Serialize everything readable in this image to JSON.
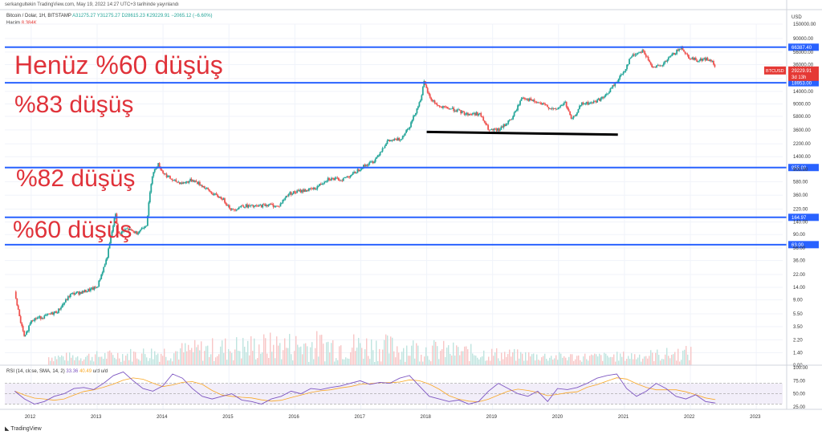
{
  "header": {
    "published": "serkangultekin TradingView.com, May 19, 2022 14:27 UTC+3 tarihinde yayınlandı",
    "symbol": "Bitcoin / Dolar, 1H, BITSTAMP",
    "open": "A31275.27",
    "high": "Y31275.27",
    "low": "D28615.23",
    "close": "K29229.91",
    "change": "−2065.12 (−6.60%)",
    "volume_label": "Hacim",
    "volume_value": "8.384K",
    "currency": "USD",
    "brand": "TradingView"
  },
  "chart_data": {
    "type": "line",
    "title": "",
    "scale": "log",
    "xlabel": "",
    "ylabel": "USD",
    "x_ticks": [
      "2012",
      "2013",
      "2014",
      "2015",
      "2016",
      "2017",
      "2018",
      "2019",
      "2020",
      "2021",
      "2022",
      "2023"
    ],
    "y_ticks": [
      "150000.00",
      "90000.00",
      "56000.00",
      "36000.00",
      "22000.00",
      "14000.00",
      "9000.00",
      "5800.00",
      "3600.00",
      "2200.00",
      "1400.00",
      "900.00",
      "580.00",
      "360.00",
      "220.00",
      "140.00",
      "90.00",
      "56.00",
      "36.00",
      "22.00",
      "14.00",
      "9.00",
      "5.50",
      "3.50",
      "2.20",
      "1.40",
      "0.90"
    ],
    "ylim": [
      0.9,
      150000
    ],
    "xlim": [
      2011.6,
      2023.4
    ],
    "grid": true,
    "series": [
      {
        "name": "",
        "points": [
          [
            2011.75,
            12
          ],
          [
            2011.82,
            5
          ],
          [
            2011.9,
            2.3
          ],
          [
            2012.0,
            4.5
          ],
          [
            2012.2,
            5
          ],
          [
            2012.4,
            6
          ],
          [
            2012.6,
            11
          ],
          [
            2012.8,
            12
          ],
          [
            2013.0,
            14
          ],
          [
            2013.15,
            40
          ],
          [
            2013.28,
            190
          ],
          [
            2013.32,
            90
          ],
          [
            2013.45,
            110
          ],
          [
            2013.6,
            95
          ],
          [
            2013.75,
            130
          ],
          [
            2013.83,
            700
          ],
          [
            2013.92,
            1100
          ],
          [
            2014.0,
            800
          ],
          [
            2014.15,
            600
          ],
          [
            2014.3,
            550
          ],
          [
            2014.45,
            620
          ],
          [
            2014.6,
            500
          ],
          [
            2014.75,
            380
          ],
          [
            2014.9,
            320
          ],
          [
            2015.05,
            210
          ],
          [
            2015.2,
            250
          ],
          [
            2015.4,
            240
          ],
          [
            2015.6,
            260
          ],
          [
            2015.75,
            240
          ],
          [
            2015.9,
            380
          ],
          [
            2016.1,
            420
          ],
          [
            2016.3,
            450
          ],
          [
            2016.5,
            650
          ],
          [
            2016.7,
            620
          ],
          [
            2016.9,
            780
          ],
          [
            2017.0,
            950
          ],
          [
            2017.2,
            1200
          ],
          [
            2017.4,
            2400
          ],
          [
            2017.6,
            2600
          ],
          [
            2017.75,
            4300
          ],
          [
            2017.9,
            10000
          ],
          [
            2017.96,
            19000
          ],
          [
            2018.05,
            11000
          ],
          [
            2018.2,
            8000
          ],
          [
            2018.4,
            7500
          ],
          [
            2018.6,
            6300
          ],
          [
            2018.8,
            6400
          ],
          [
            2018.95,
            3500
          ],
          [
            2019.1,
            3600
          ],
          [
            2019.3,
            5500
          ],
          [
            2019.45,
            11500
          ],
          [
            2019.6,
            10000
          ],
          [
            2019.8,
            8500
          ],
          [
            2019.95,
            7200
          ],
          [
            2020.1,
            9500
          ],
          [
            2020.2,
            5000
          ],
          [
            2020.35,
            9000
          ],
          [
            2020.5,
            9300
          ],
          [
            2020.7,
            11500
          ],
          [
            2020.85,
            18000
          ],
          [
            2021.0,
            29000
          ],
          [
            2021.1,
            48000
          ],
          [
            2021.28,
            60000
          ],
          [
            2021.4,
            35000
          ],
          [
            2021.55,
            33000
          ],
          [
            2021.7,
            48000
          ],
          [
            2021.87,
            66000
          ],
          [
            2021.97,
            47000
          ],
          [
            2022.1,
            42000
          ],
          [
            2022.25,
            44000
          ],
          [
            2022.35,
            38000
          ],
          [
            2022.38,
            29229
          ]
        ]
      }
    ],
    "levels": [
      {
        "value": 66387.4,
        "label": "66387.40",
        "color": "#2962ff"
      },
      {
        "value": 18953.0,
        "label": "18953.00",
        "color": "#2962ff"
      },
      {
        "value": 955.0,
        "label": "955.00",
        "color": "#2962ff"
      },
      {
        "value": 164.97,
        "label": "164.97",
        "color": "#2962ff"
      },
      {
        "value": 63.0,
        "label": "63.00",
        "color": "#2962ff"
      }
    ],
    "support_line": {
      "x": [
        2018.0,
        2020.9
      ],
      "y": [
        3350,
        3050
      ],
      "color": "#000000"
    },
    "price_tag": {
      "symbol": "BTCUSD",
      "value": "29229.91",
      "value_num": 29229.91,
      "countdown": "3d 13h",
      "color": "#e53935"
    },
    "annotations": [
      {
        "text": "Henüz %60 düşüş",
        "x": 2011.6,
        "y": 38000
      },
      {
        "text": "%83 düşüş",
        "x": 2011.8,
        "y": 11000
      },
      {
        "text": "%82 düşüş",
        "x": 2011.8,
        "y": 480
      },
      {
        "text": "%60 düşüş",
        "x": 2011.6,
        "y": 70
      }
    ],
    "up_color": "#26a69a",
    "down_color": "#ef5350"
  },
  "rsi": {
    "label": "RSI (14, close, SMA, 14, 2)",
    "value_a": "33.36",
    "value_b": "40.49",
    "tail": "u/d u/d",
    "ticks": [
      "100.00",
      "75.00",
      "50.00",
      "25.00"
    ],
    "bands": [
      70,
      30
    ],
    "line_color": "#7e57c2",
    "ma_color": "#f9a825",
    "values": [
      55,
      40,
      30,
      35,
      45,
      50,
      60,
      62,
      58,
      70,
      85,
      92,
      75,
      60,
      55,
      65,
      88,
      80,
      60,
      45,
      40,
      45,
      50,
      38,
      35,
      30,
      40,
      45,
      55,
      50,
      60,
      58,
      62,
      65,
      70,
      75,
      68,
      72,
      70,
      80,
      85,
      65,
      45,
      40,
      35,
      38,
      30,
      35,
      55,
      70,
      60,
      50,
      45,
      55,
      35,
      60,
      58,
      62,
      70,
      80,
      85,
      88,
      60,
      45,
      55,
      70,
      60,
      45,
      40,
      48,
      35,
      32
    ]
  }
}
